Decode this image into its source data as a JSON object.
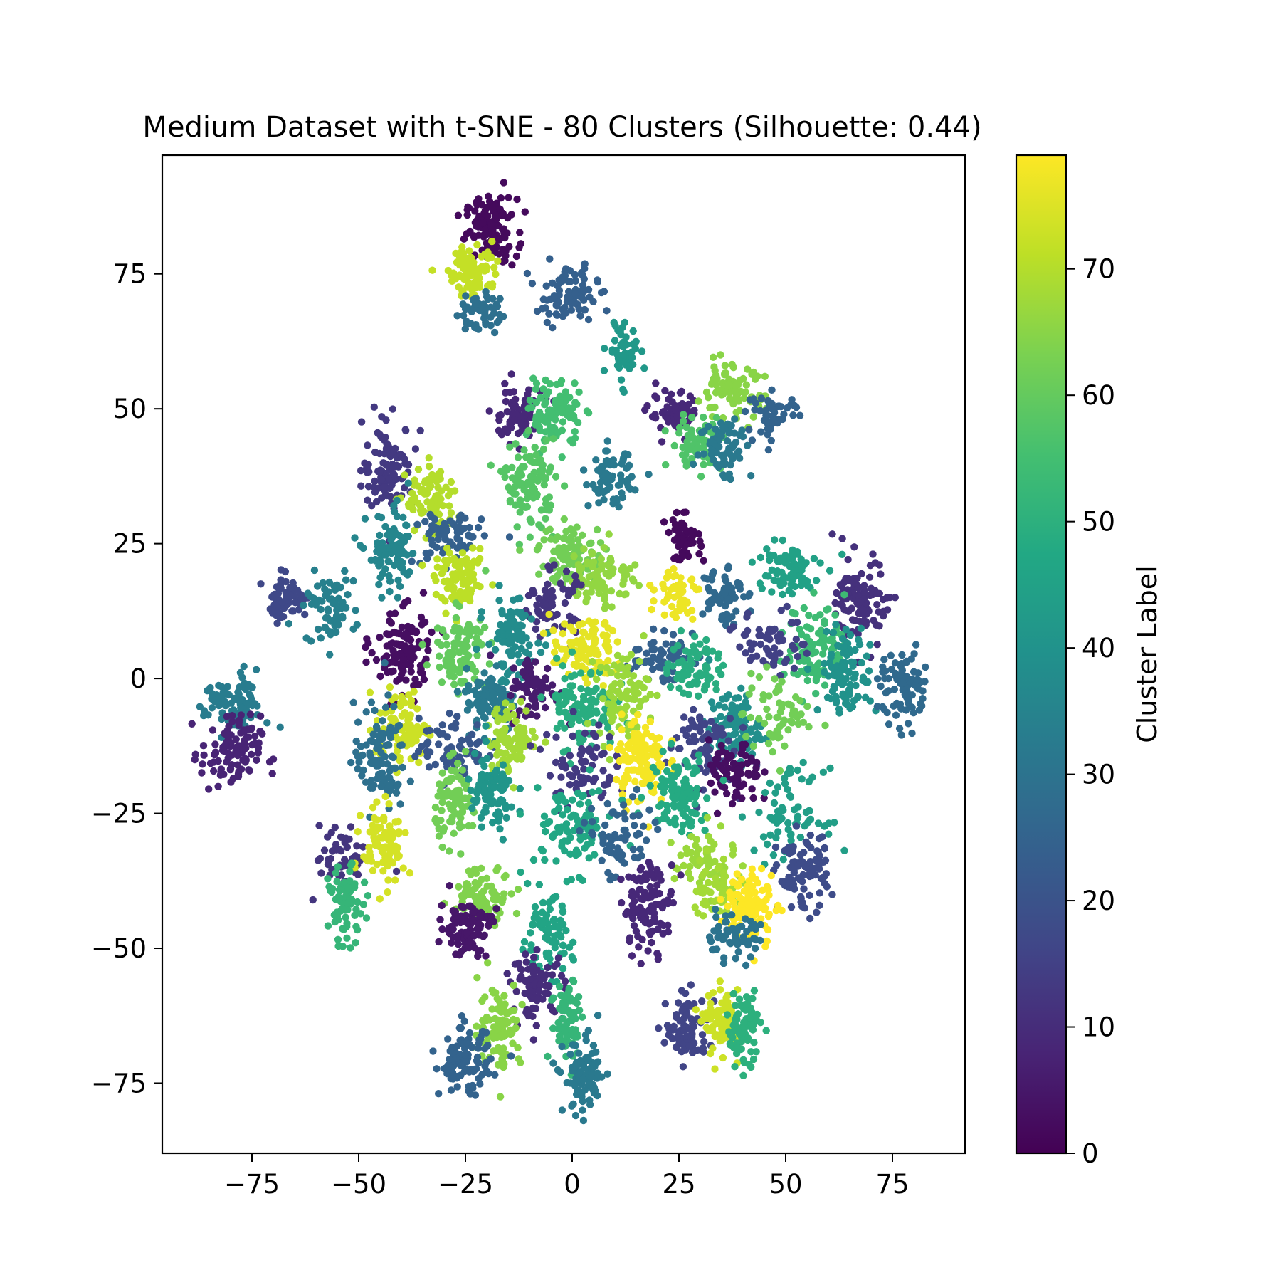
{
  "chart_data": {
    "type": "scatter",
    "title": "Medium Dataset with t-SNE - 80 Clusters (Silhouette: 0.44)",
    "xlabel": "",
    "ylabel": "",
    "xlim": [
      -96,
      92
    ],
    "ylim": [
      -88,
      97
    ],
    "xticks": [
      -75,
      -50,
      -25,
      0,
      25,
      50,
      75
    ],
    "xtick_labels": [
      "−75",
      "−50",
      "−25",
      "0",
      "25",
      "50",
      "75"
    ],
    "yticks": [
      75,
      50,
      25,
      0,
      -25,
      -50,
      -75
    ],
    "ytick_labels": [
      "75",
      "50",
      "25",
      "0",
      "−25",
      "−50",
      "−75"
    ],
    "grid": false,
    "colormap": "viridis",
    "colorbar": {
      "label": "Cluster Label",
      "range": [
        0,
        79
      ],
      "ticks": [
        0,
        10,
        20,
        30,
        40,
        50,
        60,
        70
      ],
      "tick_labels": [
        "0",
        "10",
        "20",
        "30",
        "40",
        "50",
        "60",
        "70"
      ]
    },
    "clusters": [
      {
        "label": 2,
        "x": -19,
        "y": 83,
        "sx": 3,
        "sy": 3,
        "n": 120
      },
      {
        "label": 72,
        "x": -23,
        "y": 76,
        "sx": 3,
        "sy": 2.5,
        "n": 90
      },
      {
        "label": 29,
        "x": -22,
        "y": 68,
        "sx": 2.5,
        "sy": 2,
        "n": 50
      },
      {
        "label": 24,
        "x": -1,
        "y": 71,
        "sx": 3.5,
        "sy": 2.5,
        "n": 90
      },
      {
        "label": 42,
        "x": 12,
        "y": 61,
        "sx": 1.8,
        "sy": 3,
        "n": 50
      },
      {
        "label": 9,
        "x": -13,
        "y": 49,
        "sx": 3,
        "sy": 2.5,
        "n": 80
      },
      {
        "label": 55,
        "x": -4,
        "y": 49,
        "sx": 3,
        "sy": 3,
        "n": 90
      },
      {
        "label": 9,
        "x": 24,
        "y": 49,
        "sx": 3,
        "sy": 2,
        "n": 60
      },
      {
        "label": 65,
        "x": 37,
        "y": 53,
        "sx": 4,
        "sy": 2.5,
        "n": 80
      },
      {
        "label": 25,
        "x": 47,
        "y": 49,
        "sx": 3,
        "sy": 2,
        "n": 50
      },
      {
        "label": 57,
        "x": 29,
        "y": 44,
        "sx": 3,
        "sy": 2.5,
        "n": 60
      },
      {
        "label": 32,
        "x": 36,
        "y": 43,
        "sx": 3,
        "sy": 3,
        "n": 70
      },
      {
        "label": 13,
        "x": -43,
        "y": 39,
        "sx": 3,
        "sy": 4,
        "n": 110
      },
      {
        "label": 70,
        "x": -33,
        "y": 33,
        "sx": 3,
        "sy": 3,
        "n": 90
      },
      {
        "label": 58,
        "x": -10,
        "y": 36,
        "sx": 3,
        "sy": 4,
        "n": 110
      },
      {
        "label": 32,
        "x": 9,
        "y": 37,
        "sx": 2.5,
        "sy": 2.5,
        "n": 70
      },
      {
        "label": 36,
        "x": -42,
        "y": 23,
        "sx": 3,
        "sy": 4,
        "n": 90
      },
      {
        "label": 24,
        "x": -29,
        "y": 26,
        "sx": 4,
        "sy": 2.5,
        "n": 70
      },
      {
        "label": 2,
        "x": 26,
        "y": 26,
        "sx": 2,
        "sy": 2,
        "n": 50
      },
      {
        "label": 62,
        "x": 0,
        "y": 23,
        "sx": 4,
        "sy": 3,
        "n": 90
      },
      {
        "label": 66,
        "x": 7,
        "y": 19,
        "sx": 4,
        "sy": 3,
        "n": 80
      },
      {
        "label": 71,
        "x": -26,
        "y": 18,
        "sx": 3,
        "sy": 2.5,
        "n": 90
      },
      {
        "label": 17,
        "x": -67,
        "y": 15,
        "sx": 2.5,
        "sy": 2,
        "n": 60
      },
      {
        "label": 34,
        "x": -57,
        "y": 13,
        "sx": 3,
        "sy": 3,
        "n": 70
      },
      {
        "label": 77,
        "x": 25,
        "y": 16,
        "sx": 2.5,
        "sy": 2.5,
        "n": 50
      },
      {
        "label": 27,
        "x": 35,
        "y": 16,
        "sx": 2.5,
        "sy": 3,
        "n": 60
      },
      {
        "label": 45,
        "x": 50,
        "y": 20,
        "sx": 4,
        "sy": 2.5,
        "n": 80
      },
      {
        "label": 11,
        "x": 68,
        "y": 14,
        "sx": 3,
        "sy": 4,
        "n": 110
      },
      {
        "label": 12,
        "x": -5,
        "y": 14,
        "sx": 3,
        "sy": 3,
        "n": 70
      },
      {
        "label": 3,
        "x": -40,
        "y": 5,
        "sx": 3.5,
        "sy": 4,
        "n": 120
      },
      {
        "label": 60,
        "x": -26,
        "y": 5,
        "sx": 3,
        "sy": 3.5,
        "n": 100
      },
      {
        "label": 38,
        "x": -14,
        "y": 7,
        "sx": 3,
        "sy": 4,
        "n": 100
      },
      {
        "label": 76,
        "x": 3,
        "y": 5,
        "sx": 4,
        "sy": 3,
        "n": 100
      },
      {
        "label": 24,
        "x": 20,
        "y": 4,
        "sx": 4,
        "sy": 2,
        "n": 60
      },
      {
        "label": 49,
        "x": 29,
        "y": 2,
        "sx": 3,
        "sy": 3,
        "n": 70
      },
      {
        "label": 54,
        "x": 57,
        "y": 6,
        "sx": 3.5,
        "sy": 4,
        "n": 100
      },
      {
        "label": 15,
        "x": 47,
        "y": 7,
        "sx": 4,
        "sy": 3,
        "n": 60
      },
      {
        "label": 40,
        "x": 64,
        "y": 1,
        "sx": 3,
        "sy": 4,
        "n": 100
      },
      {
        "label": 27,
        "x": 78,
        "y": -2,
        "sx": 3,
        "sy": 3.5,
        "n": 80
      },
      {
        "label": 33,
        "x": -79,
        "y": -5,
        "sx": 3.5,
        "sy": 3,
        "n": 90
      },
      {
        "label": 8,
        "x": -80,
        "y": -14,
        "sx": 3.5,
        "sy": 3.5,
        "n": 100
      },
      {
        "label": 73,
        "x": -40,
        "y": -9,
        "sx": 3,
        "sy": 3.5,
        "n": 90
      },
      {
        "label": 32,
        "x": -19,
        "y": -4,
        "sx": 3,
        "sy": 3,
        "n": 90
      },
      {
        "label": 6,
        "x": -9,
        "y": -2,
        "sx": 3,
        "sy": 3,
        "n": 70
      },
      {
        "label": 49,
        "x": 2,
        "y": -5,
        "sx": 4,
        "sy": 4,
        "n": 100
      },
      {
        "label": 67,
        "x": 12,
        "y": -3,
        "sx": 3,
        "sy": 4,
        "n": 90
      },
      {
        "label": 39,
        "x": 38,
        "y": -9,
        "sx": 3,
        "sy": 3.5,
        "n": 90
      },
      {
        "label": 62,
        "x": 48,
        "y": -7,
        "sx": 4,
        "sy": 4,
        "n": 60
      },
      {
        "label": 16,
        "x": 30,
        "y": -12,
        "sx": 4,
        "sy": 4,
        "n": 70
      },
      {
        "label": 29,
        "x": -45,
        "y": -15,
        "sx": 3,
        "sy": 5,
        "n": 100
      },
      {
        "label": 21,
        "x": -28,
        "y": -13,
        "sx": 4,
        "sy": 3,
        "n": 70
      },
      {
        "label": 68,
        "x": -14,
        "y": -11,
        "sx": 3,
        "sy": 3,
        "n": 90
      },
      {
        "label": 13,
        "x": 2,
        "y": -16,
        "sx": 4,
        "sy": 4,
        "n": 70
      },
      {
        "label": 78,
        "x": 16,
        "y": -15,
        "sx": 3,
        "sy": 4,
        "n": 120
      },
      {
        "label": 3,
        "x": 38,
        "y": -18,
        "sx": 3,
        "sy": 3,
        "n": 80
      },
      {
        "label": 62,
        "x": -27,
        "y": -23,
        "sx": 2.5,
        "sy": 3.5,
        "n": 80
      },
      {
        "label": 41,
        "x": -19,
        "y": -22,
        "sx": 3,
        "sy": 4,
        "n": 80
      },
      {
        "label": 48,
        "x": 25,
        "y": -21,
        "sx": 3.5,
        "sy": 3.5,
        "n": 100
      },
      {
        "label": 44,
        "x": 51,
        "y": -25,
        "sx": 4,
        "sy": 4,
        "n": 70
      },
      {
        "label": 47,
        "x": 0,
        "y": -28,
        "sx": 5,
        "sy": 4,
        "n": 90
      },
      {
        "label": 25,
        "x": 11,
        "y": -30,
        "sx": 4,
        "sy": 4,
        "n": 70
      },
      {
        "label": 12,
        "x": -54,
        "y": -33,
        "sx": 3,
        "sy": 3,
        "n": 50
      },
      {
        "label": 74,
        "x": -44,
        "y": -31,
        "sx": 2.5,
        "sy": 3.5,
        "n": 90
      },
      {
        "label": 67,
        "x": 31,
        "y": -34,
        "sx": 3.5,
        "sy": 3,
        "n": 60
      },
      {
        "label": 18,
        "x": 54,
        "y": -36,
        "sx": 3,
        "sy": 3.5,
        "n": 90
      },
      {
        "label": 52,
        "x": -53,
        "y": -42,
        "sx": 2,
        "sy": 3.5,
        "n": 70
      },
      {
        "label": 64,
        "x": -21,
        "y": -40,
        "sx": 3.5,
        "sy": 2.5,
        "n": 80
      },
      {
        "label": 9,
        "x": 18,
        "y": -42,
        "sx": 3,
        "sy": 4,
        "n": 110
      },
      {
        "label": 68,
        "x": 34,
        "y": -39,
        "sx": 3,
        "sy": 3,
        "n": 60
      },
      {
        "label": 79,
        "x": 42,
        "y": -42,
        "sx": 3,
        "sy": 3.5,
        "n": 100
      },
      {
        "label": 5,
        "x": -25,
        "y": -46,
        "sx": 3,
        "sy": 2.5,
        "n": 100
      },
      {
        "label": 46,
        "x": -6,
        "y": -48,
        "sx": 3,
        "sy": 3.5,
        "n": 80
      },
      {
        "label": 30,
        "x": 37,
        "y": -48,
        "sx": 3.5,
        "sy": 2,
        "n": 60
      },
      {
        "label": 10,
        "x": -8,
        "y": -57,
        "sx": 3,
        "sy": 3,
        "n": 80
      },
      {
        "label": 52,
        "x": -1,
        "y": -63,
        "sx": 2,
        "sy": 4,
        "n": 70
      },
      {
        "label": 65,
        "x": -17,
        "y": -64,
        "sx": 2.5,
        "sy": 4,
        "n": 90
      },
      {
        "label": 16,
        "x": 27,
        "y": -65,
        "sx": 2.5,
        "sy": 3,
        "n": 80
      },
      {
        "label": 73,
        "x": 35,
        "y": -64,
        "sx": 2,
        "sy": 3,
        "n": 80
      },
      {
        "label": 50,
        "x": 40,
        "y": -65,
        "sx": 2,
        "sy": 3.5,
        "n": 80
      },
      {
        "label": 25,
        "x": -25,
        "y": -71,
        "sx": 3,
        "sy": 3,
        "n": 100
      },
      {
        "label": 32,
        "x": 3,
        "y": -74,
        "sx": 2.5,
        "sy": 3.5,
        "n": 90
      }
    ]
  }
}
